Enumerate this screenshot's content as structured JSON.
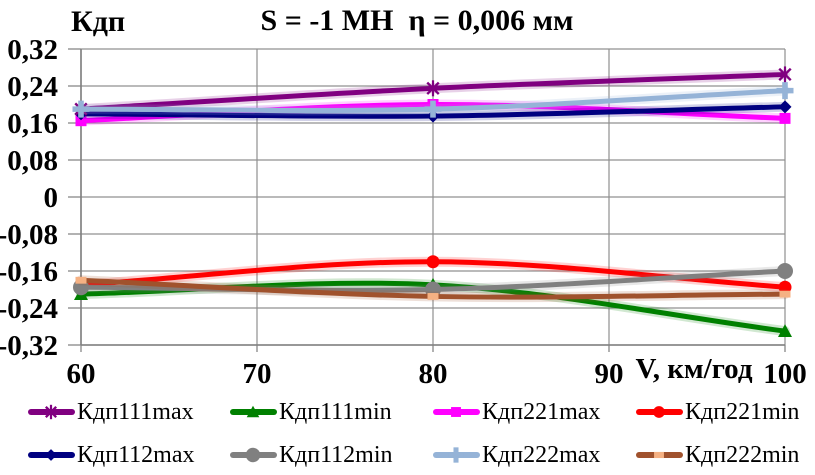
{
  "title": "S = -1 МН  η = 0,006 мм",
  "y_axis_label": "Кдп",
  "x_axis_label": "V, км/год",
  "chart_data": {
    "type": "line",
    "smoothed": true,
    "x": [
      60,
      80,
      100
    ],
    "xlim": [
      60,
      100
    ],
    "ylim": [
      -0.32,
      0.32
    ],
    "grid": true,
    "grid_color": "#909090",
    "legend_position": "bottom",
    "x_ticks": [
      {
        "label": "60",
        "value": 60
      },
      {
        "label": "70",
        "value": 70
      },
      {
        "label": "80",
        "value": 80
      },
      {
        "label": "90",
        "value": 90
      },
      {
        "label": "100",
        "value": 100
      }
    ],
    "y_ticks": [
      {
        "label": "0,32",
        "value": 0.32
      },
      {
        "label": "0,24",
        "value": 0.24
      },
      {
        "label": "0,16",
        "value": 0.16
      },
      {
        "label": "0,08",
        "value": 0.08
      },
      {
        "label": "0",
        "value": 0
      },
      {
        "label": "-0,08",
        "value": -0.08
      },
      {
        "label": "-0,16",
        "value": -0.16
      },
      {
        "label": "-0,24",
        "value": -0.24
      },
      {
        "label": "-0,32",
        "value": -0.32
      }
    ],
    "series": [
      {
        "name": "Кдп111max",
        "color": "#800080",
        "marker": "asterisk",
        "values": [
          0.19,
          0.235,
          0.265
        ]
      },
      {
        "name": "Кдп111min",
        "color": "#008000",
        "marker": "triangle",
        "values": [
          -0.21,
          -0.19,
          -0.29
        ]
      },
      {
        "name": "Кдп221max",
        "color": "#FF00FF",
        "marker": "square",
        "values": [
          0.165,
          0.2,
          0.17
        ]
      },
      {
        "name": "Кдп221min",
        "color": "#FF0000",
        "marker": "circle",
        "values": [
          -0.19,
          -0.14,
          -0.195
        ]
      },
      {
        "name": "Кдп112max",
        "color": "#000080",
        "marker": "diamond",
        "values": [
          0.18,
          0.175,
          0.195
        ]
      },
      {
        "name": "Кдп112min",
        "color": "#808080",
        "marker": "circle",
        "values": [
          -0.195,
          -0.2,
          -0.16
        ]
      },
      {
        "name": "Кдп222max",
        "color": "#95B3D7",
        "marker": "plus",
        "values": [
          0.19,
          0.19,
          0.23
        ]
      },
      {
        "name": "Кдп222min",
        "color": "#A0522D",
        "marker": "dash",
        "marker_color": "#F5B183",
        "values": [
          -0.18,
          -0.215,
          -0.21
        ]
      }
    ]
  }
}
